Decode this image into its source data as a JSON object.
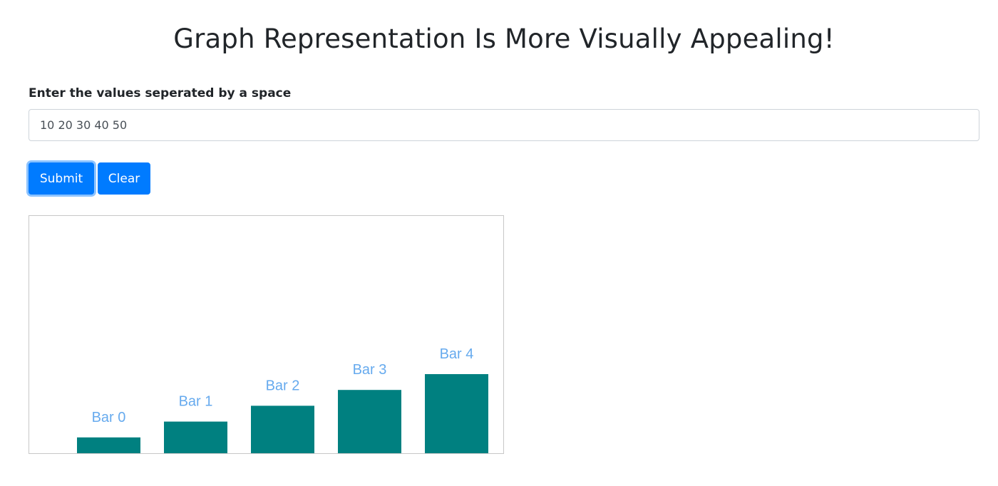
{
  "page": {
    "title": "Graph Representation Is More Visually Appealing!"
  },
  "form": {
    "label": "Enter the values seperated by a space",
    "input_value": "10 20 30 40 50",
    "submit_label": "Submit",
    "clear_label": "Clear"
  },
  "colors": {
    "primary": "#007bff",
    "bar": "#008080",
    "bar_label": "#66aaee"
  },
  "chart_data": {
    "type": "bar",
    "categories": [
      "Bar 0",
      "Bar 1",
      "Bar 2",
      "Bar 3",
      "Bar 4"
    ],
    "values": [
      10,
      20,
      30,
      40,
      50
    ],
    "title": "",
    "xlabel": "",
    "ylabel": "",
    "ylim": [
      0,
      150
    ],
    "grid": false
  }
}
